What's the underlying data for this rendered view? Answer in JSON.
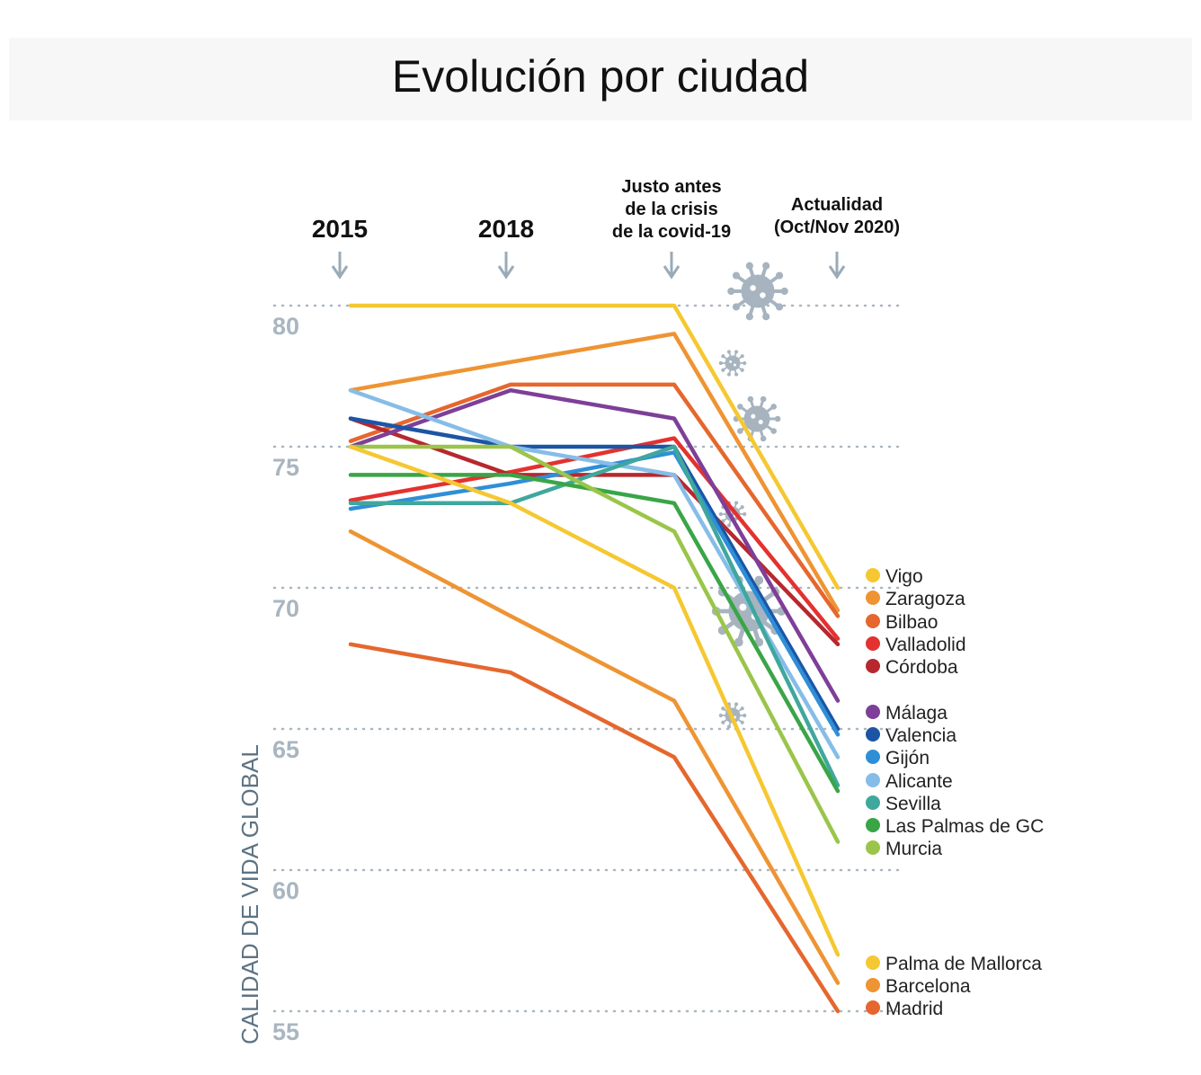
{
  "chart_data": {
    "type": "line",
    "title": "Evolución por ciudad",
    "ylabel": "CALIDAD DE VIDA GLOBAL",
    "ylim": [
      55,
      80
    ],
    "yticks": [
      "80",
      "75",
      "70",
      "65",
      "60",
      "55"
    ],
    "grid": true,
    "legend_placement": "right",
    "categories": [
      {
        "lines": [
          "2015"
        ]
      },
      {
        "lines": [
          "2018"
        ]
      },
      {
        "lines": [
          "Justo antes",
          "de la crisis",
          "de la covid-19"
        ]
      },
      {
        "lines": [
          "Actualidad",
          "(Oct/Nov 2020)"
        ]
      }
    ],
    "series": [
      {
        "name": "Vigo",
        "color": "#f5c832",
        "values": [
          80,
          80,
          80,
          70
        ]
      },
      {
        "name": "Zaragoza",
        "color": "#ee9433",
        "values": [
          77,
          78,
          79,
          69.2
        ]
      },
      {
        "name": "Bilbao",
        "color": "#e5672e",
        "values": [
          75.2,
          77.2,
          77.2,
          69
        ]
      },
      {
        "name": "Valladolid",
        "color": "#e3322f",
        "values": [
          73.1,
          74.1,
          75.3,
          68.2
        ]
      },
      {
        "name": "Córdoba",
        "color": "#b7282e",
        "values": [
          76,
          74,
          74,
          68
        ]
      },
      {
        "name": "Málaga",
        "color": "#7e3f98",
        "values": [
          75,
          77,
          76,
          66
        ]
      },
      {
        "name": "Valencia",
        "color": "#1c55a5",
        "values": [
          76,
          75,
          75,
          65
        ]
      },
      {
        "name": "Gijón",
        "color": "#2f8fd6",
        "values": [
          72.8,
          73.7,
          74.8,
          64.8
        ]
      },
      {
        "name": "Alicante",
        "color": "#86bde8",
        "values": [
          77,
          75,
          74,
          64
        ]
      },
      {
        "name": "Sevilla",
        "color": "#40a79d",
        "values": [
          73,
          73,
          75,
          63
        ]
      },
      {
        "name": "Las Palmas de GC",
        "color": "#3aa547",
        "values": [
          74,
          74,
          73,
          62.8
        ]
      },
      {
        "name": "Murcia",
        "color": "#9ac54a",
        "values": [
          75,
          75,
          72,
          61
        ]
      },
      {
        "name": "Palma de Mallorca",
        "color": "#f5c832",
        "values": [
          75,
          73,
          70,
          57
        ]
      },
      {
        "name": "Barcelona",
        "color": "#ee9433",
        "values": [
          72,
          69,
          66,
          56
        ]
      },
      {
        "name": "Madrid",
        "color": "#e5672e",
        "values": [
          68,
          67,
          64,
          55
        ]
      }
    ]
  },
  "colors": {
    "grid": "#a9b6c1",
    "arrow": "#9aabb8",
    "virus": "#a3b1bd",
    "banner": "#f7f7f8"
  },
  "icons": [
    "virus-icon",
    "arrow-down-icon"
  ]
}
